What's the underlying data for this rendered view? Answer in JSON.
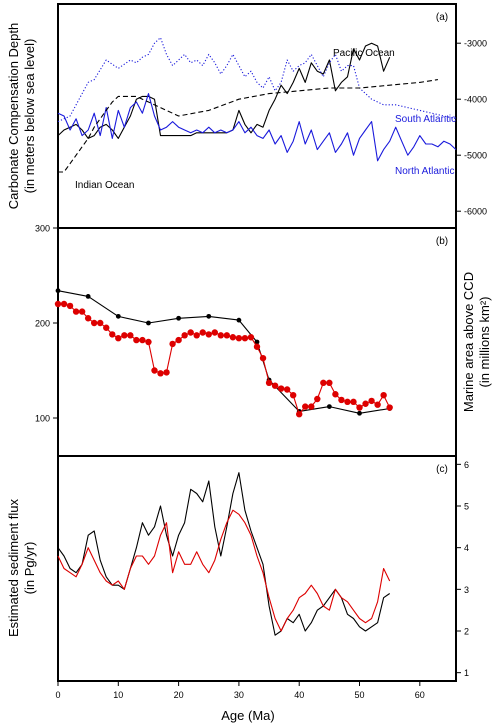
{
  "figure": {
    "xlabel": "Age (Ma)"
  },
  "chart_data": [
    {
      "type": "line",
      "panel_label": "(a)",
      "ylabel_lines": [
        "Carbonate Compensation Depth",
        "(in meters below sea level)"
      ],
      "ylim": [
        -6300,
        -2300
      ],
      "xlim": [
        0,
        66
      ],
      "y_ticks": [
        -3000,
        -4000,
        -5000,
        -6000
      ],
      "annotations": [
        {
          "text": "Pacific Ocean",
          "color": "#000000"
        },
        {
          "text": "South Atlantic",
          "color": "#1a1adc"
        },
        {
          "text": "North Atlantic",
          "color": "#1a1adc"
        },
        {
          "text": "Indian Ocean",
          "color": "#000000"
        }
      ],
      "series": [
        {
          "key": "pacific",
          "color": "#000000",
          "style": "solid",
          "x": [
            0,
            1,
            2,
            3,
            4,
            5,
            6,
            7,
            8,
            9,
            10,
            11,
            12,
            13,
            14,
            15,
            16,
            17,
            18,
            19,
            20,
            21,
            22,
            23,
            24,
            25,
            26,
            27,
            28,
            29,
            30,
            31,
            32,
            33,
            34,
            35,
            36,
            37,
            38,
            39,
            40,
            41,
            42,
            43,
            44,
            45,
            46,
            47,
            48,
            49,
            50,
            51,
            52,
            53,
            54,
            55
          ],
          "y": [
            -4650,
            -4550,
            -4500,
            -4450,
            -4550,
            -4700,
            -4650,
            -4500,
            -4450,
            -4550,
            -4700,
            -4500,
            -4300,
            -4000,
            -3950,
            -3950,
            -4000,
            -4650,
            -4650,
            -4650,
            -4650,
            -4650,
            -4650,
            -4600,
            -4600,
            -4600,
            -4600,
            -4600,
            -4600,
            -4550,
            -4200,
            -4450,
            -4600,
            -4450,
            -4500,
            -4200,
            -4000,
            -3750,
            -3900,
            -3700,
            -3450,
            -3700,
            -3350,
            -3500,
            -3550,
            -3300,
            -3850,
            -3700,
            -3600,
            -3100,
            -3300,
            -3050,
            -3000,
            -3050,
            -3500,
            -3250
          ]
        },
        {
          "key": "south_atlantic",
          "color": "#1a1adc",
          "style": "dotted",
          "x": [
            0,
            2,
            4,
            5,
            6,
            8,
            10,
            12,
            13,
            14,
            15,
            16,
            17,
            18,
            19,
            20,
            21,
            22,
            23,
            24,
            25,
            26,
            27,
            28,
            29,
            30,
            31,
            32,
            33,
            34,
            35,
            36,
            37,
            38,
            39,
            40,
            41,
            42,
            43,
            44,
            45,
            46,
            47,
            48,
            49,
            50,
            52,
            54,
            56,
            58,
            60,
            62,
            64,
            66
          ],
          "y": [
            -4400,
            -4300,
            -3900,
            -3700,
            -3650,
            -3300,
            -3450,
            -3300,
            -3350,
            -3250,
            -3200,
            -3000,
            -2900,
            -3200,
            -3400,
            -3300,
            -3200,
            -3350,
            -3300,
            -3400,
            -3200,
            -3350,
            -3550,
            -3400,
            -3200,
            -3400,
            -3600,
            -3500,
            -3700,
            -3800,
            -3600,
            -3850,
            -3700,
            -3300,
            -3500,
            -3400,
            -3350,
            -3200,
            -3400,
            -3600,
            -3350,
            -3200,
            -3500,
            -3400,
            -3400,
            -3800,
            -4000,
            -4100,
            -4100,
            -4150,
            -4200,
            -4250,
            -4300,
            -4350
          ]
        },
        {
          "key": "north_atlantic",
          "color": "#1a1adc",
          "style": "solid",
          "x": [
            0,
            1,
            2,
            3,
            4,
            5,
            6,
            7,
            8,
            9,
            10,
            11,
            12,
            13,
            14,
            15,
            16,
            17,
            18,
            19,
            20,
            21,
            22,
            23,
            24,
            25,
            26,
            27,
            28,
            29,
            30,
            31,
            32,
            33,
            34,
            35,
            36,
            37,
            38,
            39,
            40,
            41,
            42,
            43,
            44,
            45,
            46,
            47,
            48,
            49,
            50,
            51,
            52,
            53,
            54,
            55,
            56,
            57,
            58,
            59,
            60,
            61,
            62,
            63,
            64,
            65,
            66
          ],
          "y": [
            -4250,
            -4300,
            -4550,
            -4350,
            -4650,
            -4550,
            -4250,
            -4650,
            -4150,
            -4700,
            -4200,
            -4500,
            -4150,
            -4050,
            -4250,
            -3900,
            -4300,
            -4550,
            -4500,
            -4400,
            -4500,
            -4550,
            -4600,
            -4550,
            -4600,
            -4500,
            -4600,
            -4550,
            -4600,
            -4550,
            -4400,
            -4600,
            -4500,
            -4650,
            -4700,
            -4550,
            -4800,
            -4650,
            -4950,
            -4750,
            -4400,
            -4800,
            -4550,
            -4900,
            -4750,
            -4600,
            -4950,
            -4800,
            -4600,
            -5000,
            -4700,
            -4550,
            -4400,
            -5100,
            -4900,
            -4750,
            -4500,
            -4750,
            -5000,
            -4850,
            -4650,
            -4800,
            -4800,
            -4850,
            -4750,
            -4800,
            -4900
          ]
        },
        {
          "key": "indian",
          "color": "#000000",
          "style": "dashed",
          "x": [
            0,
            1,
            2,
            3,
            4,
            5,
            6,
            7,
            8,
            9,
            10,
            11,
            12,
            13,
            14,
            15,
            17,
            20,
            25,
            30,
            35,
            40,
            45,
            50,
            55,
            60,
            63
          ],
          "y": [
            -5300,
            -5300,
            -5150,
            -5000,
            -4850,
            -4700,
            -4500,
            -4350,
            -4200,
            -4050,
            -3950,
            -3950,
            -3950,
            -3950,
            -4000,
            -4050,
            -4150,
            -4300,
            -4200,
            -4000,
            -3900,
            -3850,
            -3800,
            -3800,
            -3750,
            -3700,
            -3650
          ]
        }
      ]
    },
    {
      "type": "line",
      "panel_label": "(b)",
      "ylabel_lines": [
        "Marine area above CCD",
        "(in millions km²)"
      ],
      "ylim": [
        60,
        300
      ],
      "xlim": [
        0,
        66
      ],
      "y_ticks": [
        100,
        200,
        300
      ],
      "series": [
        {
          "key": "black",
          "color": "#000000",
          "markers": true,
          "x": [
            0,
            5,
            10,
            15,
            20,
            25,
            30,
            33,
            35,
            40,
            45,
            50,
            55
          ],
          "y": [
            234,
            228,
            207,
            200,
            205,
            207,
            203,
            180,
            140,
            107,
            112,
            105,
            110
          ]
        },
        {
          "key": "red",
          "color": "#dd0000",
          "markers": true,
          "x": [
            0,
            1,
            2,
            3,
            4,
            5,
            6,
            7,
            8,
            9,
            10,
            11,
            12,
            13,
            14,
            15,
            16,
            17,
            18,
            19,
            20,
            21,
            22,
            23,
            24,
            25,
            26,
            27,
            28,
            29,
            30,
            31,
            32,
            33,
            34,
            35,
            36,
            37,
            38,
            39,
            40,
            41,
            42,
            43,
            44,
            45,
            46,
            47,
            48,
            49,
            50,
            51,
            52,
            53,
            54,
            55
          ],
          "y": [
            220,
            220,
            218,
            212,
            212,
            205,
            200,
            200,
            195,
            188,
            184,
            187,
            187,
            182,
            182,
            180,
            150,
            147,
            148,
            178,
            182,
            187,
            190,
            187,
            190,
            188,
            190,
            187,
            187,
            185,
            184,
            184,
            185,
            175,
            163,
            137,
            134,
            131,
            130,
            124,
            104,
            112,
            112,
            120,
            137,
            137,
            125,
            119,
            117,
            117,
            111,
            115,
            118,
            114,
            124,
            111
          ]
        }
      ]
    },
    {
      "type": "line",
      "panel_label": "(c)",
      "ylabel_lines": [
        "Estimated sediment flux",
        "(in Pg/yr)"
      ],
      "ylim": [
        0.8,
        6.2
      ],
      "xlim": [
        0,
        66
      ],
      "y_ticks": [
        1,
        2,
        3,
        4,
        5,
        6
      ],
      "x_ticks": [
        0,
        10,
        20,
        30,
        40,
        50,
        60
      ],
      "series": [
        {
          "key": "black",
          "color": "#000000",
          "x": [
            0,
            1,
            2,
            3,
            4,
            5,
            6,
            7,
            8,
            9,
            10,
            11,
            12,
            13,
            14,
            15,
            16,
            17,
            18,
            19,
            20,
            21,
            22,
            23,
            24,
            25,
            26,
            27,
            28,
            29,
            30,
            31,
            32,
            33,
            34,
            35,
            36,
            37,
            38,
            39,
            40,
            41,
            42,
            43,
            44,
            45,
            46,
            47,
            48,
            49,
            50,
            51,
            52,
            53,
            54,
            55
          ],
          "y": [
            4.0,
            3.8,
            3.5,
            3.4,
            3.6,
            4.3,
            4.4,
            3.7,
            3.3,
            3.1,
            3.1,
            3.0,
            3.5,
            4.0,
            4.6,
            4.3,
            4.5,
            5.0,
            4.3,
            3.8,
            4.3,
            4.6,
            5.4,
            5.3,
            5.1,
            5.6,
            4.5,
            3.8,
            4.5,
            5.3,
            5.8,
            4.9,
            4.4,
            4.0,
            3.6,
            2.6,
            1.9,
            2.0,
            2.3,
            2.2,
            2.4,
            2.0,
            2.2,
            2.5,
            2.6,
            2.8,
            3.0,
            2.8,
            2.4,
            2.3,
            2.1,
            2.0,
            2.1,
            2.2,
            2.8,
            2.9
          ]
        },
        {
          "key": "red",
          "color": "#dd0000",
          "x": [
            0,
            1,
            2,
            3,
            4,
            5,
            6,
            7,
            8,
            9,
            10,
            11,
            12,
            13,
            14,
            15,
            16,
            17,
            18,
            19,
            20,
            21,
            22,
            23,
            24,
            25,
            26,
            27,
            28,
            29,
            30,
            31,
            32,
            33,
            34,
            35,
            36,
            37,
            38,
            39,
            40,
            41,
            42,
            43,
            44,
            45,
            46,
            47,
            48,
            49,
            50,
            51,
            52,
            53,
            54,
            55
          ],
          "y": [
            3.8,
            3.5,
            3.4,
            3.3,
            3.6,
            4.0,
            3.7,
            3.4,
            3.2,
            3.1,
            3.2,
            3.0,
            3.5,
            3.8,
            3.8,
            3.6,
            3.8,
            4.3,
            4.6,
            3.4,
            3.9,
            3.6,
            3.6,
            3.9,
            3.6,
            3.4,
            3.7,
            4.2,
            4.6,
            4.9,
            4.8,
            4.6,
            4.3,
            3.8,
            3.4,
            2.8,
            2.3,
            2.0,
            2.3,
            2.5,
            2.8,
            2.9,
            3.1,
            2.9,
            2.6,
            2.5,
            3.0,
            2.8,
            2.7,
            2.5,
            2.3,
            2.2,
            2.3,
            2.7,
            3.5,
            3.2
          ]
        }
      ]
    }
  ]
}
